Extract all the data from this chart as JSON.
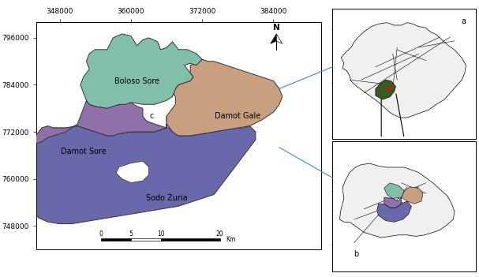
{
  "main_xlim": [
    344000,
    392000
  ],
  "main_ylim": [
    742000,
    800000
  ],
  "x_ticks": [
    348000,
    360000,
    372000,
    384000
  ],
  "y_ticks": [
    748000,
    760000,
    772000,
    784000,
    796000
  ],
  "colors": {
    "boloso_sore": "#82bfaa",
    "damot_gale": "#c8a080",
    "damot_sore": "#9070a8",
    "sodo_zuria": "#6868aa",
    "background": "#ffffff",
    "border": "#333333"
  },
  "fig_bg": "#ffffff",
  "fontsize_label": 7,
  "fontsize_tick": 6.5
}
